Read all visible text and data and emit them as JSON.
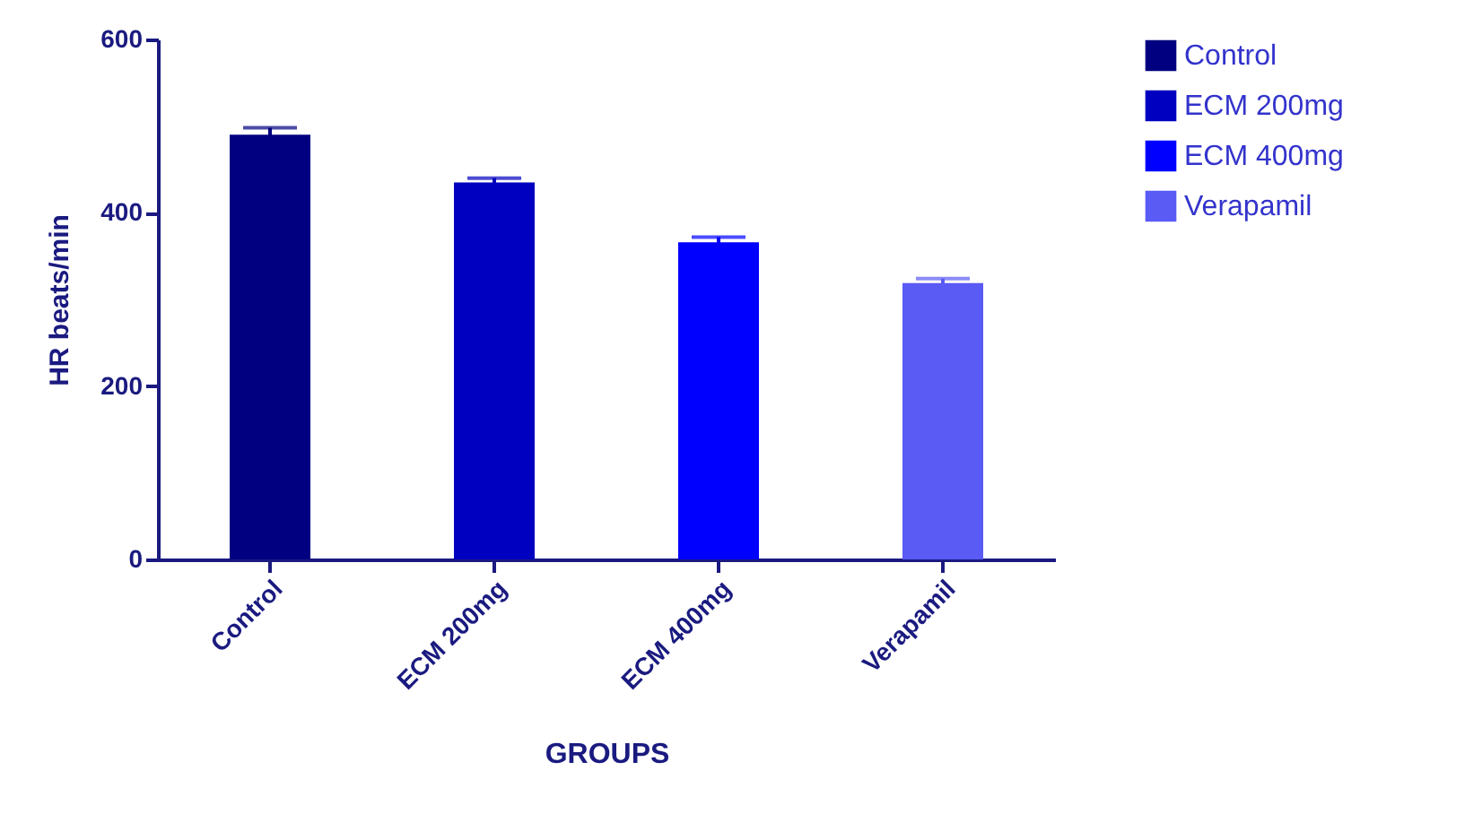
{
  "chart_data": {
    "type": "bar",
    "categories": [
      "Control",
      "ECM 200mg",
      "ECM 400mg",
      "Verapamil"
    ],
    "series": [
      {
        "name": "Control",
        "color": "#000080",
        "values": [
          490,
          null,
          null,
          null
        ],
        "errors": [
          8,
          null,
          null,
          null
        ]
      },
      {
        "name": "ECM 200mg",
        "color": "#0000c0",
        "values": [
          null,
          435,
          null,
          null
        ],
        "errors": [
          null,
          5,
          null,
          null
        ]
      },
      {
        "name": "ECM 400mg",
        "color": "#0000ff",
        "values": [
          null,
          null,
          366,
          null
        ],
        "errors": [
          null,
          null,
          6,
          null
        ]
      },
      {
        "name": "Verapamil",
        "color": "#5a5af5",
        "values": [
          null,
          null,
          null,
          319
        ],
        "errors": [
          null,
          null,
          null,
          5
        ]
      }
    ],
    "xlabel": "GROUPS",
    "ylabel": "HR beats/min",
    "ylim": [
      0,
      600
    ],
    "yticks": [
      0,
      200,
      400,
      600
    ],
    "grid": false,
    "legend": "top right"
  }
}
